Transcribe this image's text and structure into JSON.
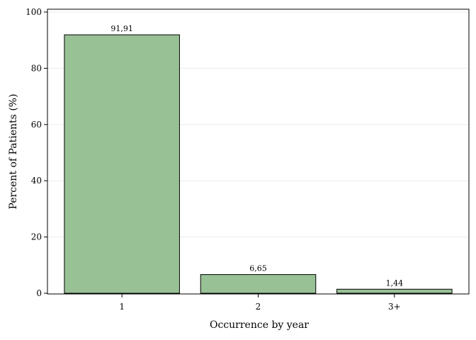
{
  "chart_data": {
    "type": "bar",
    "categories": [
      "1",
      "2",
      "3+"
    ],
    "values": [
      91.91,
      6.65,
      1.44
    ],
    "data_labels": [
      "91,91",
      "6,65",
      "1,44"
    ],
    "xlabel": "Occurrence by year",
    "ylabel": "Percent of Patients (%)",
    "ylim": [
      0,
      100
    ],
    "yticks": [
      "0",
      "20",
      "40",
      "60",
      "80",
      "100"
    ],
    "grid": true,
    "bar_color": "#98c196"
  }
}
